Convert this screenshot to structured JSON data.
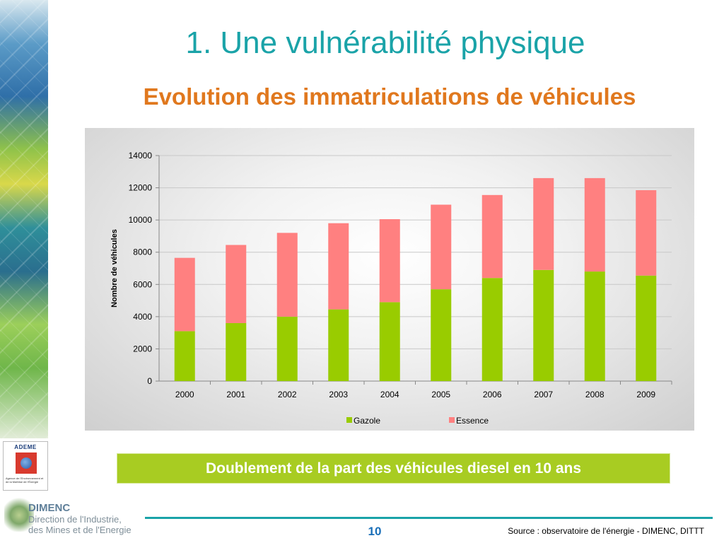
{
  "slide": {
    "title": "1. Une vulnérabilité physique",
    "subtitle": "Evolution des immatriculations de véhicules",
    "banner": "Doublement de la part des véhicules diesel en 10 ans",
    "page_number": "10",
    "source": "Source : observatoire de l'énergie - DIMENC, DITTT"
  },
  "logos": {
    "ademe": "ADEME",
    "ademe_sub": "Agence de l'Environnement et de la Maîtrise de l'Énergie",
    "dimenc_title": "DIMENC",
    "dimenc_sub1": "Direction de l'Industrie,",
    "dimenc_sub2": "des Mines et de l'Energie"
  },
  "chart_data": {
    "type": "bar",
    "stacked": true,
    "title": "",
    "xlabel": "",
    "ylabel": "Nombre de véhicules",
    "categories": [
      "2000",
      "2001",
      "2002",
      "2003",
      "2004",
      "2005",
      "2006",
      "2007",
      "2008",
      "2009"
    ],
    "series": [
      {
        "name": "Gazole",
        "color": "#99cc00",
        "values": [
          3100,
          3600,
          4000,
          4450,
          4900,
          5700,
          6400,
          6900,
          6800,
          6550
        ]
      },
      {
        "name": "Essence",
        "color": "#ff8080",
        "values": [
          4550,
          4850,
          5200,
          5350,
          5150,
          5250,
          5150,
          5700,
          5800,
          5300
        ]
      }
    ],
    "ylim": [
      0,
      14000
    ],
    "yticks": [
      0,
      2000,
      4000,
      6000,
      8000,
      10000,
      12000,
      14000
    ],
    "grid": true,
    "legend_position": "bottom"
  }
}
